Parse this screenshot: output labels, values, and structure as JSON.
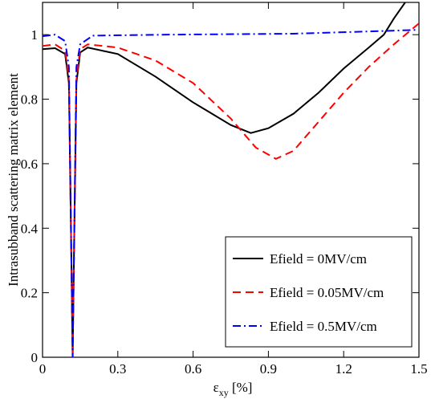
{
  "chart_data": {
    "type": "line",
    "xlabel": [
      "ε",
      "xy",
      " [%]"
    ],
    "ylabel": "Intrasubband scattering matrix element",
    "xlim": [
      0,
      1.5
    ],
    "ylim": [
      0,
      1.1
    ],
    "xticks": [
      0,
      0.3,
      0.6,
      0.9,
      1.2,
      1.5
    ],
    "yticks": [
      0,
      0.2,
      0.4,
      0.6,
      0.8,
      1
    ],
    "legend": "lower right",
    "series": [
      {
        "name": "Efield = 0MV/cm",
        "color": "#000000",
        "dash": "solid",
        "x": [
          0,
          0.05,
          0.09,
          0.105,
          0.115,
          0.12,
          0.125,
          0.135,
          0.15,
          0.18,
          0.3,
          0.45,
          0.6,
          0.75,
          0.83,
          0.9,
          1.0,
          1.1,
          1.2,
          1.3,
          1.36,
          1.4,
          1.445
        ],
        "values": [
          0.955,
          0.958,
          0.94,
          0.85,
          0.3,
          0,
          0.3,
          0.85,
          0.945,
          0.96,
          0.94,
          0.87,
          0.79,
          0.72,
          0.695,
          0.71,
          0.755,
          0.82,
          0.895,
          0.96,
          1.0,
          1.05,
          1.1
        ]
      },
      {
        "name": "Efield = 0.05MV/cm",
        "color": "#ff0000",
        "dash": "dashed",
        "x": [
          0,
          0.05,
          0.09,
          0.105,
          0.115,
          0.12,
          0.125,
          0.135,
          0.15,
          0.18,
          0.3,
          0.45,
          0.6,
          0.75,
          0.85,
          0.93,
          1.0,
          1.1,
          1.2,
          1.3,
          1.4,
          1.5
        ],
        "values": [
          0.965,
          0.97,
          0.95,
          0.86,
          0.3,
          0,
          0.3,
          0.86,
          0.955,
          0.97,
          0.96,
          0.92,
          0.85,
          0.74,
          0.65,
          0.615,
          0.64,
          0.73,
          0.82,
          0.9,
          0.97,
          1.035
        ]
      },
      {
        "name": "Efield = 0.5MV/cm",
        "color": "#0000ff",
        "dash": "dashdot",
        "x": [
          0,
          0.05,
          0.09,
          0.105,
          0.115,
          0.12,
          0.125,
          0.135,
          0.15,
          0.2,
          0.5,
          1.0,
          1.3,
          1.5
        ],
        "values": [
          0.995,
          1.0,
          0.98,
          0.9,
          0.3,
          0,
          0.3,
          0.9,
          0.97,
          0.997,
          1.0,
          1.003,
          1.01,
          1.015
        ]
      }
    ]
  }
}
